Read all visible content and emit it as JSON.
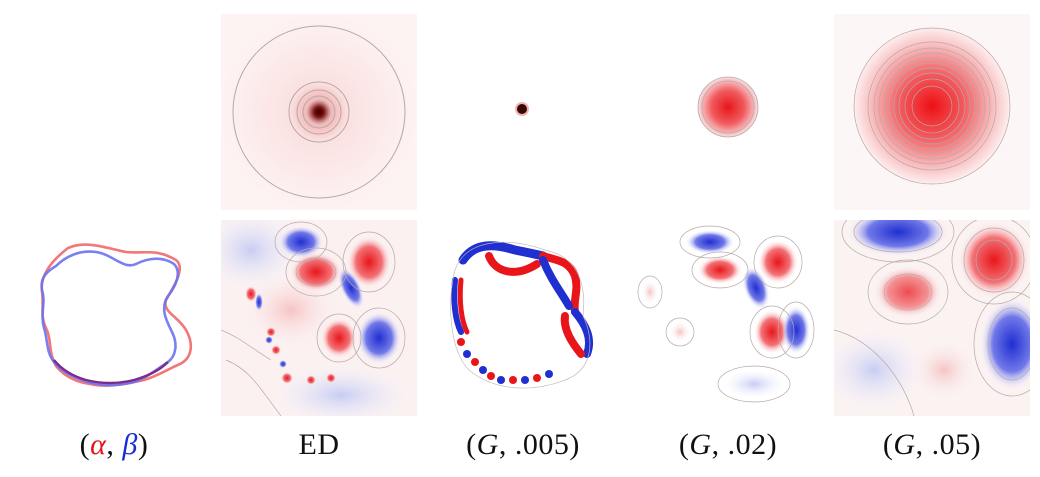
{
  "figure": {
    "captions": [
      {
        "open": "(",
        "alpha": "α",
        "comma": ", ",
        "beta": "β",
        "close": ")"
      },
      {
        "text": "ED"
      },
      {
        "open": "(",
        "g": "G",
        "rest": ", .005)"
      },
      {
        "open": "(",
        "g": "G",
        "rest": ", .02)"
      },
      {
        "open": "(",
        "g": "G",
        "rest": ", .05)"
      }
    ]
  },
  "colors": {
    "positive": "#e8161b",
    "negative": "#1f2fd0",
    "alpha_curve": "#f0686a",
    "beta_curve": "#6a72f0",
    "contour": "#b8a8a8"
  }
}
